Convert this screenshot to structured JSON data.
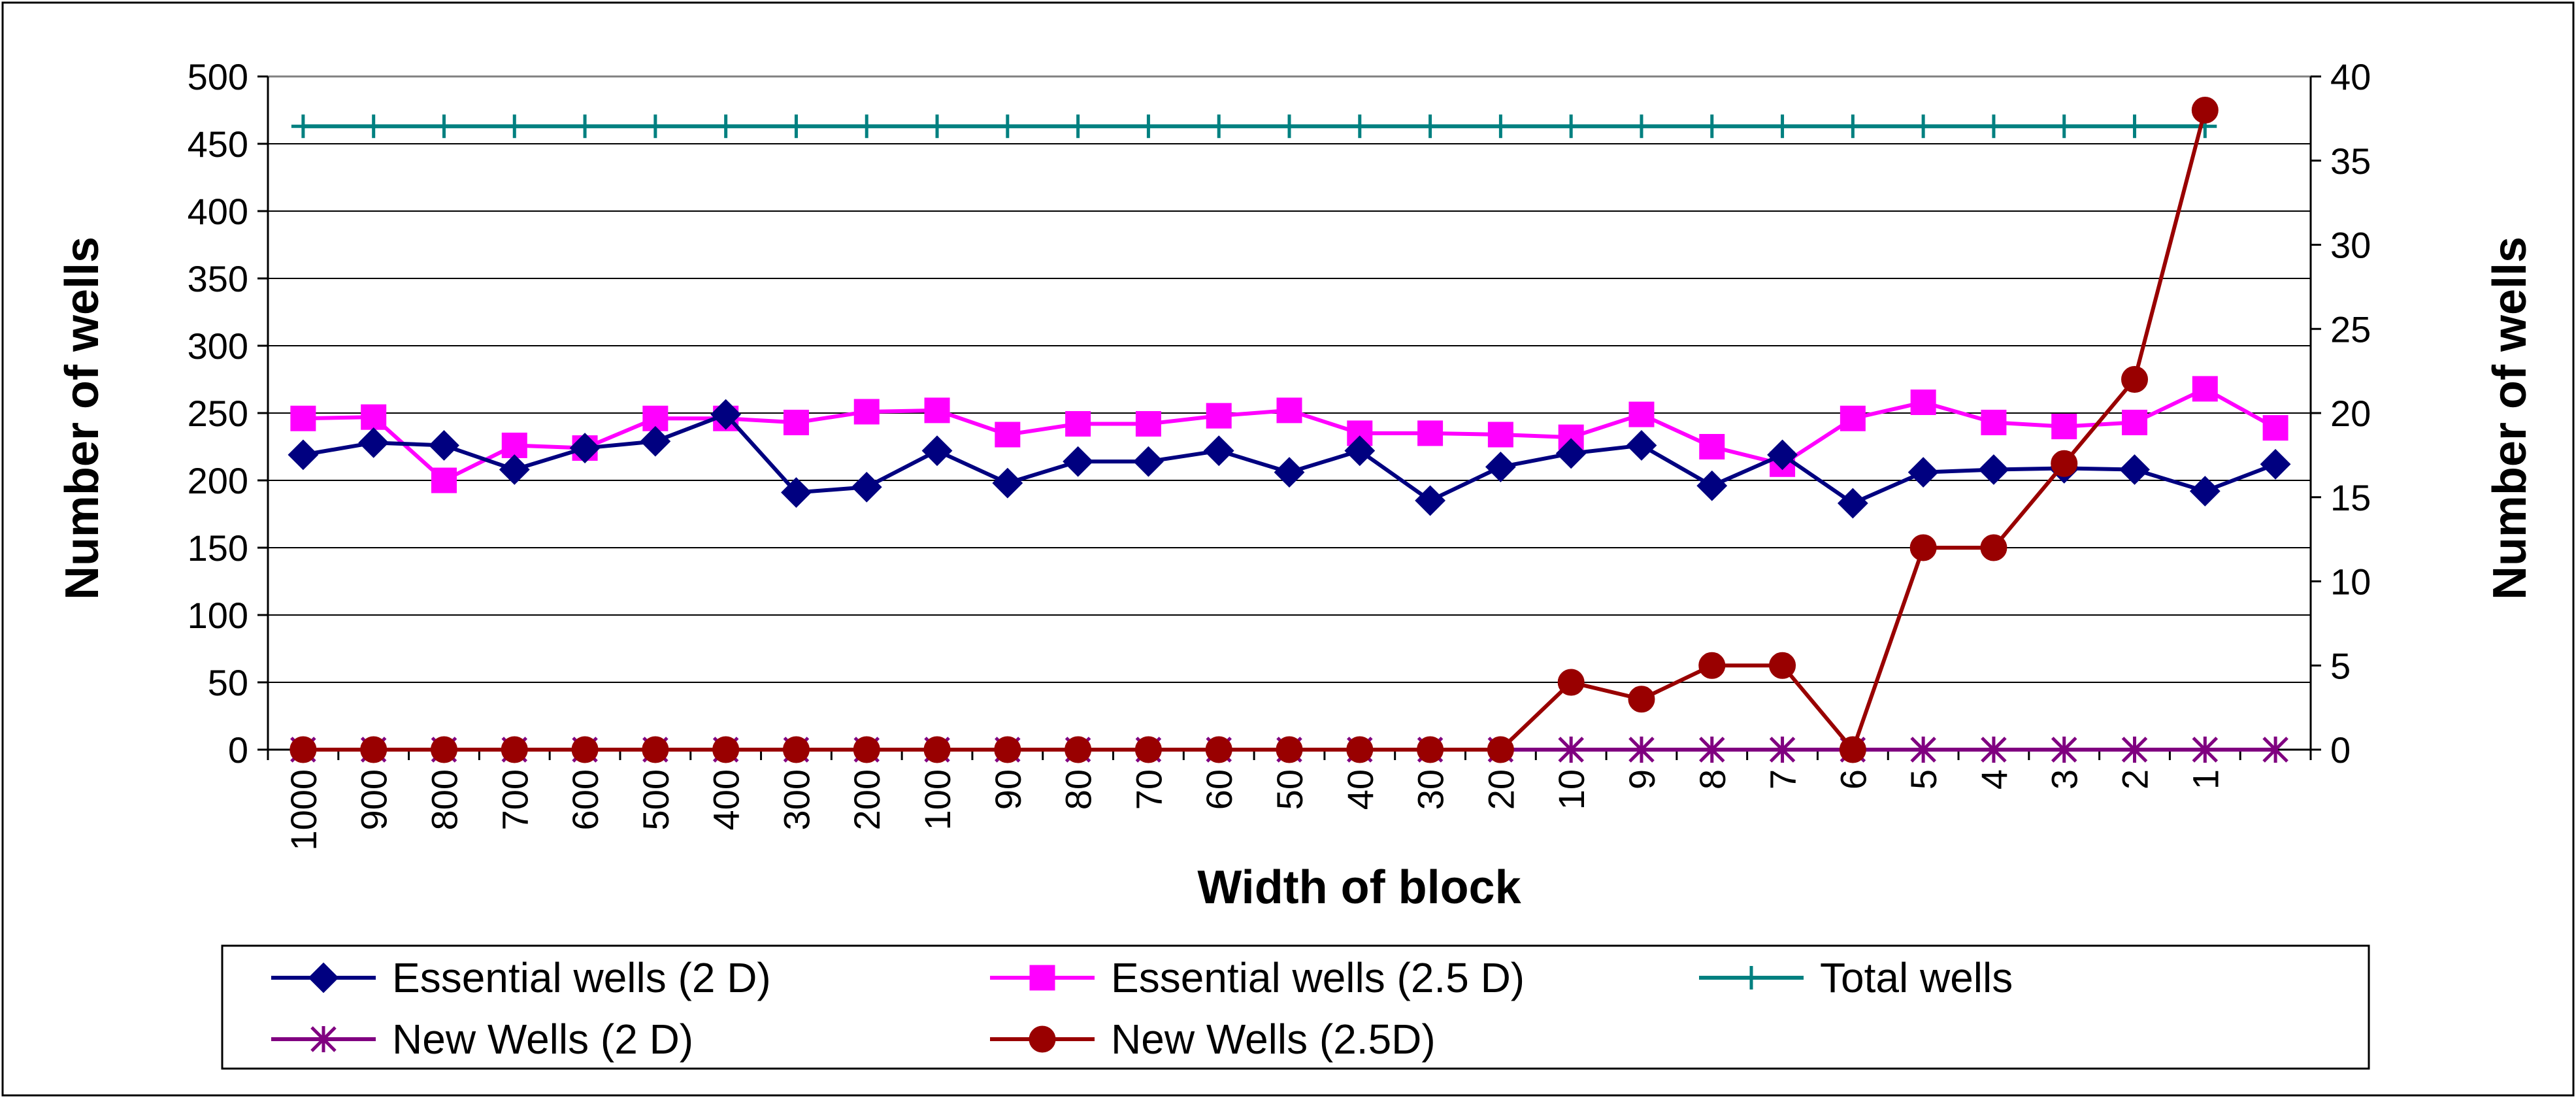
{
  "chart_data": {
    "type": "line",
    "title": "",
    "xlabel": "Width of block",
    "ylabel": "Number of wells",
    "y2label": "Number of wells",
    "ylim": [
      0,
      500
    ],
    "y2lim": [
      0,
      40
    ],
    "yticks": [
      "0",
      "50",
      "100",
      "150",
      "200",
      "250",
      "300",
      "350",
      "400",
      "450",
      "500"
    ],
    "y2ticks": [
      "0",
      "5",
      "10",
      "15",
      "20",
      "25",
      "30",
      "35",
      "40"
    ],
    "categories": [
      "1000",
      "900",
      "800",
      "700",
      "600",
      "500",
      "400",
      "300",
      "200",
      "100",
      "90",
      "80",
      "70",
      "60",
      "50",
      "40",
      "30",
      "20",
      "10",
      "9",
      "8",
      "7",
      "6",
      "5",
      "4",
      "3",
      "2",
      "1",
      ""
    ],
    "grid": true,
    "legend_position": "bottom",
    "series": [
      {
        "name": "Essential wells (2 D)",
        "axis": "left",
        "color": "#000080",
        "marker": "diamond",
        "values": [
          219,
          228,
          226,
          208,
          224,
          229,
          249,
          191,
          195,
          222,
          198,
          214,
          214,
          222,
          206,
          222,
          185,
          210,
          220,
          226,
          196,
          219,
          183,
          206,
          208,
          209,
          208,
          192,
          212
        ]
      },
      {
        "name": "Essential wells (2.5 D)",
        "axis": "left",
        "color": "#ff00ff",
        "marker": "square",
        "values": [
          246,
          247,
          200,
          226,
          224,
          246,
          246,
          243,
          251,
          252,
          234,
          242,
          242,
          248,
          252,
          235,
          235,
          234,
          232,
          249,
          225,
          212,
          246,
          258,
          243,
          240,
          243,
          268,
          239
        ]
      },
      {
        "name": "Total wells",
        "axis": "left",
        "color": "#008080",
        "marker": "plus",
        "values": [
          463,
          463,
          463,
          463,
          463,
          463,
          463,
          463,
          463,
          463,
          463,
          463,
          463,
          463,
          463,
          463,
          463,
          463,
          463,
          463,
          463,
          463,
          463,
          463,
          463,
          463,
          463,
          463,
          null
        ]
      },
      {
        "name": "New Wells (2 D)",
        "axis": "right",
        "color": "#800080",
        "marker": "star",
        "values": [
          0,
          0,
          0,
          0,
          0,
          0,
          0,
          0,
          0,
          0,
          0,
          0,
          0,
          0,
          0,
          0,
          0,
          0,
          0,
          0,
          0,
          0,
          0,
          0,
          0,
          0,
          0,
          0,
          0
        ]
      },
      {
        "name": "New Wells (2.5D)",
        "axis": "right",
        "color": "#990000",
        "marker": "circle",
        "values": [
          0,
          0,
          0,
          0,
          0,
          0,
          0,
          0,
          0,
          0,
          0,
          0,
          0,
          0,
          0,
          0,
          0,
          0,
          4,
          3,
          5,
          5,
          0,
          12,
          12,
          17,
          22,
          38,
          null
        ]
      }
    ]
  }
}
